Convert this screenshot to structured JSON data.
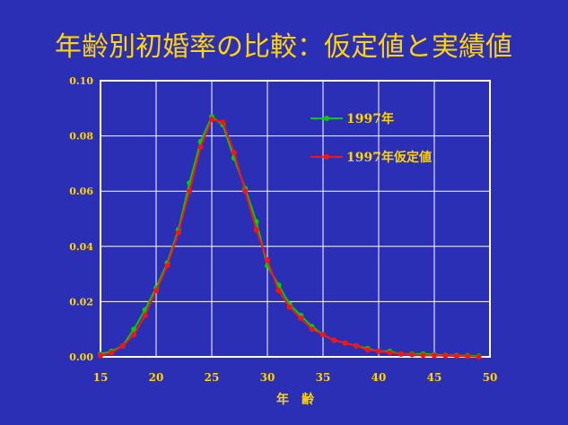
{
  "chart_data": {
    "type": "line",
    "title": "年齢別初婚率の比較：仮定値と実績値",
    "xlabel": "年　齢",
    "ylabel": "",
    "xlim": [
      15,
      50
    ],
    "ylim": [
      0,
      0.1
    ],
    "x_ticks": [
      "15",
      "20",
      "25",
      "30",
      "35",
      "40",
      "45",
      "50"
    ],
    "y_ticks": [
      "0.00",
      "0.02",
      "0.04",
      "0.06",
      "0.08",
      "0.10"
    ],
    "grid": true,
    "legend_position": "top-right",
    "colors": {
      "background": "#2b2fb5",
      "plot_area": "#2b2fb5",
      "axis_text": "#ffd400",
      "title_text": "#ffd400",
      "grid": "#ffffff"
    },
    "x": [
      15,
      16,
      17,
      18,
      19,
      20,
      21,
      22,
      23,
      24,
      25,
      26,
      27,
      28,
      29,
      30,
      31,
      32,
      33,
      34,
      35,
      36,
      37,
      38,
      39,
      40,
      41,
      42,
      43,
      44,
      45,
      46,
      47,
      48,
      49
    ],
    "series": [
      {
        "name": "1997年",
        "color": "#00d000",
        "values": [
          0.001,
          0.002,
          0.004,
          0.01,
          0.017,
          0.025,
          0.034,
          0.046,
          0.063,
          0.078,
          0.087,
          0.084,
          0.072,
          0.061,
          0.049,
          0.033,
          0.026,
          0.019,
          0.015,
          0.011,
          0.008,
          0.006,
          0.005,
          0.004,
          0.003,
          0.002,
          0.002,
          0.001,
          0.001,
          0.001,
          0.0008,
          0.0006,
          0.0005,
          0.0004,
          0.0003
        ]
      },
      {
        "name": "1997年仮定値",
        "color": "#ff1010",
        "values": [
          0.0005,
          0.0015,
          0.004,
          0.008,
          0.015,
          0.024,
          0.033,
          0.045,
          0.06,
          0.076,
          0.086,
          0.085,
          0.074,
          0.06,
          0.046,
          0.035,
          0.024,
          0.018,
          0.014,
          0.01,
          0.008,
          0.006,
          0.005,
          0.004,
          0.0025,
          0.002,
          0.0015,
          0.001,
          0.0008,
          0.0006,
          0.0005,
          0.0004,
          0.0003,
          0.0002,
          0.0001
        ]
      }
    ]
  }
}
